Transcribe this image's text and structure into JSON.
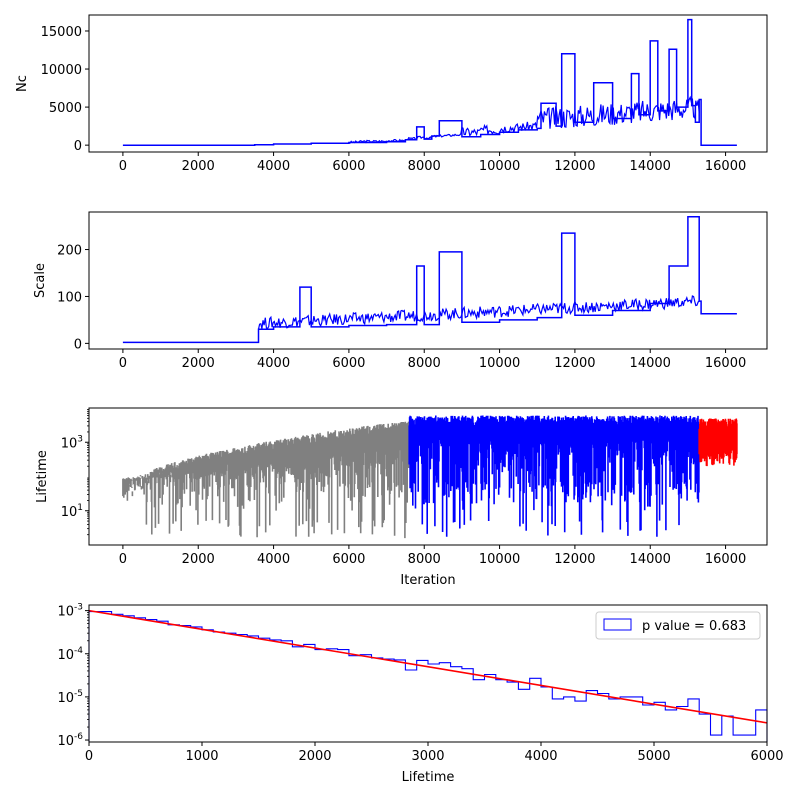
{
  "chart_data": [
    {
      "type": "line",
      "ylabel": "Nc",
      "xlabel": "",
      "xlim": [
        -900,
        17100
      ],
      "ylim": [
        -900,
        17100
      ],
      "xticks": [
        0,
        2000,
        4000,
        6000,
        8000,
        10000,
        12000,
        14000,
        16000
      ],
      "xtick_labels": [
        "0",
        "2000",
        "4000",
        "6000",
        "8000",
        "10000",
        "12000",
        "14000",
        "16000"
      ],
      "yticks": [
        0,
        5000,
        10000,
        15000
      ],
      "ytick_labels": [
        "0",
        "5000",
        "10000",
        "15000"
      ],
      "series": [
        {
          "color": "#0000ff",
          "x": [
            0,
            3500,
            4000,
            5000,
            6000,
            7000,
            7500,
            7800,
            8000,
            8200,
            8400,
            9000,
            9500,
            10000,
            10500,
            11000,
            11100,
            11500,
            11650,
            12000,
            12500,
            13000,
            13500,
            13700,
            14000,
            14200,
            14500,
            14700,
            15000,
            15100,
            15200,
            15300,
            15350,
            16300
          ],
          "y": [
            0,
            50,
            150,
            250,
            350,
            450,
            700,
            2400,
            800,
            1200,
            3200,
            1100,
            1400,
            1700,
            2000,
            2200,
            5500,
            2500,
            12000,
            3000,
            8200,
            3500,
            9400,
            4000,
            13700,
            4500,
            12600,
            5000,
            16500,
            5200,
            3000,
            6000,
            0,
            0
          ]
        }
      ]
    },
    {
      "type": "line",
      "ylabel": "Scale",
      "xlabel": "",
      "xlim": [
        -900,
        17100
      ],
      "ylim": [
        -12,
        280
      ],
      "xticks": [
        0,
        2000,
        4000,
        6000,
        8000,
        10000,
        12000,
        14000,
        16000
      ],
      "xtick_labels": [
        "0",
        "2000",
        "4000",
        "6000",
        "8000",
        "10000",
        "12000",
        "14000",
        "16000"
      ],
      "yticks": [
        0,
        100,
        200
      ],
      "ytick_labels": [
        "0",
        "100",
        "200"
      ],
      "series": [
        {
          "color": "#0000ff",
          "x": [
            0,
            3590,
            3600,
            4000,
            4700,
            5000,
            6000,
            7000,
            7800,
            8000,
            8400,
            9000,
            10000,
            11000,
            11650,
            12000,
            13000,
            14000,
            14500,
            15000,
            15300,
            15350,
            16300
          ],
          "y": [
            2,
            2,
            30,
            35,
            120,
            35,
            38,
            40,
            165,
            40,
            195,
            45,
            50,
            55,
            235,
            60,
            70,
            85,
            165,
            270,
            90,
            63,
            63
          ]
        }
      ]
    },
    {
      "type": "line",
      "scale_y": "log",
      "ylabel": "Lifetime",
      "xlabel": "Iteration",
      "xlim": [
        -900,
        17100
      ],
      "ylim": [
        1,
        10000
      ],
      "xticks": [
        0,
        2000,
        4000,
        6000,
        8000,
        10000,
        12000,
        14000,
        16000
      ],
      "xtick_labels": [
        "0",
        "2000",
        "4000",
        "6000",
        "8000",
        "10000",
        "12000",
        "14000",
        "16000"
      ],
      "yticks": [
        10,
        1000
      ],
      "ytick_labels": [
        "10^1",
        "10^3"
      ],
      "series": [
        {
          "color": "#808080",
          "x_range": [
            0,
            7600
          ],
          "y_range": [
            3,
            6000
          ]
        },
        {
          "color": "#0000ff",
          "x_range": [
            7600,
            15300
          ],
          "y_range": [
            3,
            6500
          ]
        },
        {
          "color": "#ff0000",
          "x_range": [
            15300,
            16300
          ],
          "y_range": [
            200,
            7000
          ]
        }
      ]
    },
    {
      "type": "histogram",
      "scale_y": "log",
      "xlabel": "Lifetime",
      "ylabel": "",
      "xlim": [
        0,
        6000
      ],
      "ylim": [
        9e-07,
        0.00135
      ],
      "xticks": [
        0,
        1000,
        2000,
        3000,
        4000,
        5000,
        6000
      ],
      "xtick_labels": [
        "0",
        "1000",
        "2000",
        "3000",
        "4000",
        "5000",
        "6000"
      ],
      "yticks": [
        1e-06,
        1e-05,
        0.0001,
        0.001
      ],
      "ytick_labels": [
        "10^-6",
        "10^-5",
        "10^-4",
        "10^-3"
      ],
      "bin_width": 100,
      "histogram_values": [
        0.00095,
        0.00095,
        0.00082,
        0.00076,
        0.00068,
        0.00062,
        0.00057,
        0.00047,
        0.00045,
        0.00042,
        0.00036,
        0.00032,
        0.0003,
        0.00028,
        0.00026,
        0.00023,
        0.00021,
        0.0002,
        0.000145,
        0.000165,
        0.000125,
        0.00013,
        0.000125,
        9e-05,
        9.5e-05,
        8e-05,
        7.5e-05,
        7.2e-05,
        4.2e-05,
        7e-05,
        5.8e-05,
        6.2e-05,
        5e-05,
        4.5e-05,
        2.5e-05,
        3.3e-05,
        2.5e-05,
        2.2e-05,
        1.5e-05,
        2.7e-05,
        1.7e-05,
        9e-06,
        1e-05,
        8e-06,
        1.4e-05,
        1.2e-05,
        9e-06,
        1e-05,
        1e-05,
        6.5e-06,
        7.5e-06,
        5e-06,
        6e-06,
        9e-06,
        4e-06,
        1.3e-06,
        3.6e-06,
        1.3e-06,
        1.3e-06,
        5e-06
      ],
      "fit_line": {
        "x": [
          0,
          6000
        ],
        "y": [
          0.001,
          2.5e-06
        ],
        "color": "#ff0000"
      },
      "legend": {
        "label": "p value = 0.683",
        "location": "top-right",
        "color": "#0000ff"
      }
    }
  ]
}
